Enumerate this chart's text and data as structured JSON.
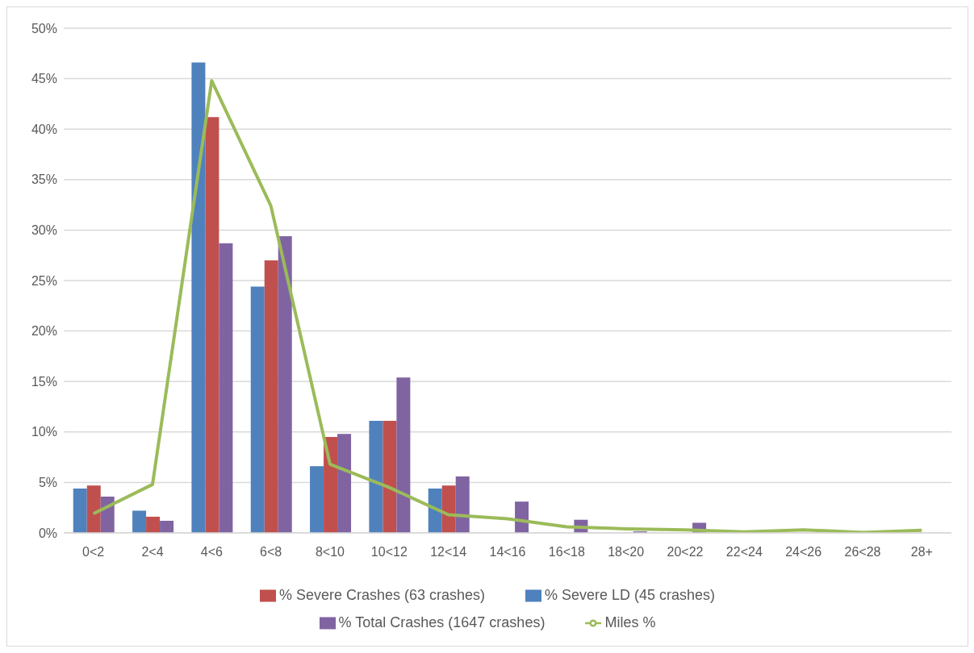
{
  "chart_data": {
    "type": "bar",
    "categories": [
      "0<2",
      "2<4",
      "4<6",
      "6<8",
      "8<10",
      "10<12",
      "12<14",
      "14<16",
      "16<18",
      "18<20",
      "20<22",
      "22<24",
      "24<26",
      "26<28",
      "28+"
    ],
    "series": [
      {
        "name": "% Severe LD (45 crashes)",
        "color": "#4f81bd",
        "values": [
          4.4,
          2.2,
          46.6,
          24.4,
          6.6,
          11.1,
          4.4,
          0,
          0,
          0,
          0,
          0,
          0,
          0,
          0
        ]
      },
      {
        "name": "% Severe Crashes (63 crashes)",
        "color": "#c0504d",
        "values": [
          4.7,
          1.6,
          41.2,
          27,
          9.5,
          11.1,
          4.7,
          0,
          0,
          0,
          0,
          0,
          0,
          0,
          0
        ]
      },
      {
        "name": "% Total Crashes (1647 crashes)",
        "color": "#8064a2",
        "values": [
          3.6,
          1.2,
          28.7,
          29.4,
          9.8,
          15.4,
          5.6,
          3.1,
          1.3,
          0.15,
          1,
          0,
          0,
          0,
          0
        ]
      },
      {
        "name": "Miles %",
        "type": "line",
        "color": "#9bbb59",
        "marker": "none",
        "values": [
          1.9,
          4.8,
          44.8,
          32.4,
          6.8,
          4.5,
          1.8,
          1.4,
          0.6,
          0.4,
          0.3,
          0.1,
          0.3,
          0.05,
          0.25
        ]
      }
    ],
    "ylim": [
      0,
      50
    ],
    "yticks": [
      {
        "value": 0,
        "label": "0%"
      },
      {
        "value": 5,
        "label": "5%"
      },
      {
        "value": 10,
        "label": "10%"
      },
      {
        "value": 15,
        "label": "15%"
      },
      {
        "value": 20,
        "label": "20%"
      },
      {
        "value": 25,
        "label": "25%"
      },
      {
        "value": 30,
        "label": "30%"
      },
      {
        "value": 35,
        "label": "35%"
      },
      {
        "value": 40,
        "label": "40%"
      },
      {
        "value": 45,
        "label": "45%"
      },
      {
        "value": 50,
        "label": "50%"
      }
    ],
    "grid": "y",
    "legend": "bottom"
  }
}
